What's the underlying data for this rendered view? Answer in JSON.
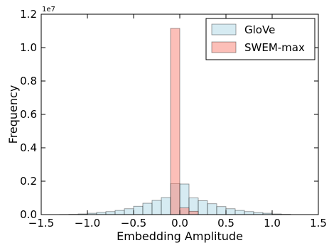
{
  "chart_data": {
    "type": "bar",
    "xlabel": "Embedding Amplitude",
    "ylabel": "Frequency",
    "y_scale_label": "1e7",
    "y_multiplier": 10000000,
    "xlim": [
      -1.5,
      1.5
    ],
    "ylim": [
      0,
      1.2
    ],
    "x_ticks": [
      -1.5,
      -1.0,
      -0.5,
      0.0,
      0.5,
      1.0,
      1.5
    ],
    "x_tick_labels": [
      "−1.5",
      "−1.0",
      "−0.5",
      "0.0",
      "0.5",
      "1.0",
      "1.5"
    ],
    "y_ticks": [
      0.0,
      0.2,
      0.4,
      0.6,
      0.8,
      1.0,
      1.2
    ],
    "y_tick_labels": [
      "0.0",
      "0.2",
      "0.4",
      "0.6",
      "0.8",
      "1.0",
      "1.2"
    ],
    "legend_position": "top-right",
    "series": [
      {
        "name": "GloVe",
        "color": "#add8e6",
        "opacity": 0.5,
        "bin_width": 0.1,
        "bin_starts": [
          -1.3,
          -1.2,
          -1.1,
          -1.0,
          -0.9,
          -0.8,
          -0.7,
          -0.6,
          -0.5,
          -0.4,
          -0.3,
          -0.2,
          -0.1,
          0.0,
          0.1,
          0.2,
          0.3,
          0.4,
          0.5,
          0.6,
          0.7,
          0.8,
          0.9,
          1.0,
          1.1
        ],
        "values": [
          0.001,
          0.002,
          0.004,
          0.008,
          0.013,
          0.018,
          0.025,
          0.035,
          0.05,
          0.068,
          0.085,
          0.102,
          0.185,
          0.183,
          0.1,
          0.083,
          0.065,
          0.048,
          0.035,
          0.025,
          0.018,
          0.012,
          0.008,
          0.004,
          0.002
        ]
      },
      {
        "name": "SWEM-max",
        "color": "#fa8072",
        "opacity": 0.5,
        "bin_width": 0.1,
        "bin_starts": [
          -0.1,
          0.0,
          0.1
        ],
        "values": [
          1.115,
          0.04,
          0.02
        ]
      }
    ]
  }
}
